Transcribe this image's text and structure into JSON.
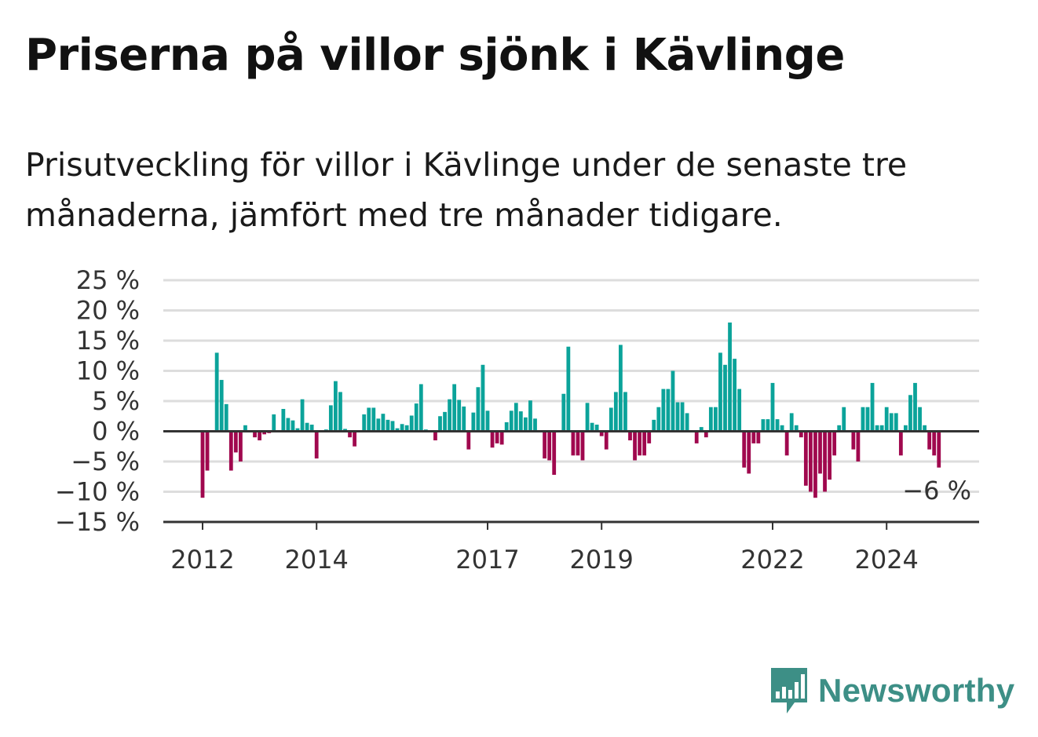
{
  "title": "Priserna på villor sjönk i Kävlinge",
  "subtitle": "Prisutveckling för villor i Kävlinge under de senaste tre månaderna, jämfört med tre månader tidigare.",
  "logo": {
    "name": "Newsworthy",
    "icon": "newsworthy-bar-chart-icon",
    "color": "#3d8f86"
  },
  "colors": {
    "positive": "#0ba39a",
    "negative": "#a0084e",
    "grid": "#dddddd",
    "axis": "#333333"
  },
  "chart_data": {
    "type": "bar",
    "title": "Priserna på villor sjönk i Kävlinge",
    "ylim": [
      -15,
      25
    ],
    "yticks": [
      -15,
      -10,
      -5,
      0,
      5,
      10,
      15,
      20,
      25
    ],
    "ytick_labels": [
      "−15 %",
      "−10 %",
      "−5 %",
      "0 %",
      "5 %",
      "10 %",
      "15 %",
      "20 %",
      "25 %"
    ],
    "x_start": "2012-01",
    "xticks": [
      {
        "label": "2012",
        "x": "2012-01"
      },
      {
        "label": "2014",
        "x": "2014-01"
      },
      {
        "label": "2017",
        "x": "2017-01"
      },
      {
        "label": "2019",
        "x": "2019-01"
      },
      {
        "label": "2022",
        "x": "2022-01"
      },
      {
        "label": "2024",
        "x": "2024-01"
      }
    ],
    "values": [
      -11,
      -6.5,
      0,
      13,
      8.5,
      4.5,
      -6.5,
      -3.5,
      -5,
      1,
      0,
      -1,
      -1.5,
      -0.5,
      -0.3,
      2.8,
      0.2,
      3.7,
      2.2,
      1.8,
      0.5,
      5.3,
      1.4,
      1.1,
      -4.5,
      0,
      0.3,
      4.3,
      8.3,
      6.5,
      0.4,
      -1,
      -2.5,
      0,
      2.8,
      3.9,
      3.9,
      2.1,
      2.9,
      1.9,
      1.7,
      0.5,
      1.2,
      1,
      2.6,
      4.6,
      7.8,
      0.3,
      0,
      -1.5,
      2.5,
      3.2,
      5.3,
      7.8,
      5.2,
      4.1,
      -3,
      3.1,
      7.3,
      11,
      3.4,
      -2.7,
      -2,
      -2.2,
      1.5,
      3.4,
      4.7,
      3.3,
      2.3,
      5.1,
      2.1,
      0,
      -4.5,
      -4.8,
      -7.2,
      0,
      6.2,
      14,
      -4,
      -4,
      -4.8,
      4.7,
      1.4,
      1.1,
      -0.8,
      -3,
      3.9,
      6.5,
      14.3,
      6.5,
      -1.5,
      -4.8,
      -4,
      -4,
      -2,
      1.9,
      4,
      7,
      7,
      10,
      4.8,
      4.8,
      3,
      0,
      -2,
      0.7,
      -1,
      4,
      4,
      13,
      11,
      18,
      12,
      7,
      -6,
      -7,
      -2,
      -2,
      2,
      2,
      8,
      2,
      1,
      -4,
      3,
      1,
      -1,
      -9,
      -10,
      -11,
      -7,
      -10,
      -8,
      -4,
      1,
      4,
      0,
      -3,
      -5,
      4,
      4,
      8,
      1,
      1,
      4,
      3,
      3,
      -4,
      1,
      6,
      8,
      4,
      1,
      -3,
      -4,
      -6
    ],
    "last_label": "−6 %",
    "grid": true,
    "legend": "none"
  }
}
